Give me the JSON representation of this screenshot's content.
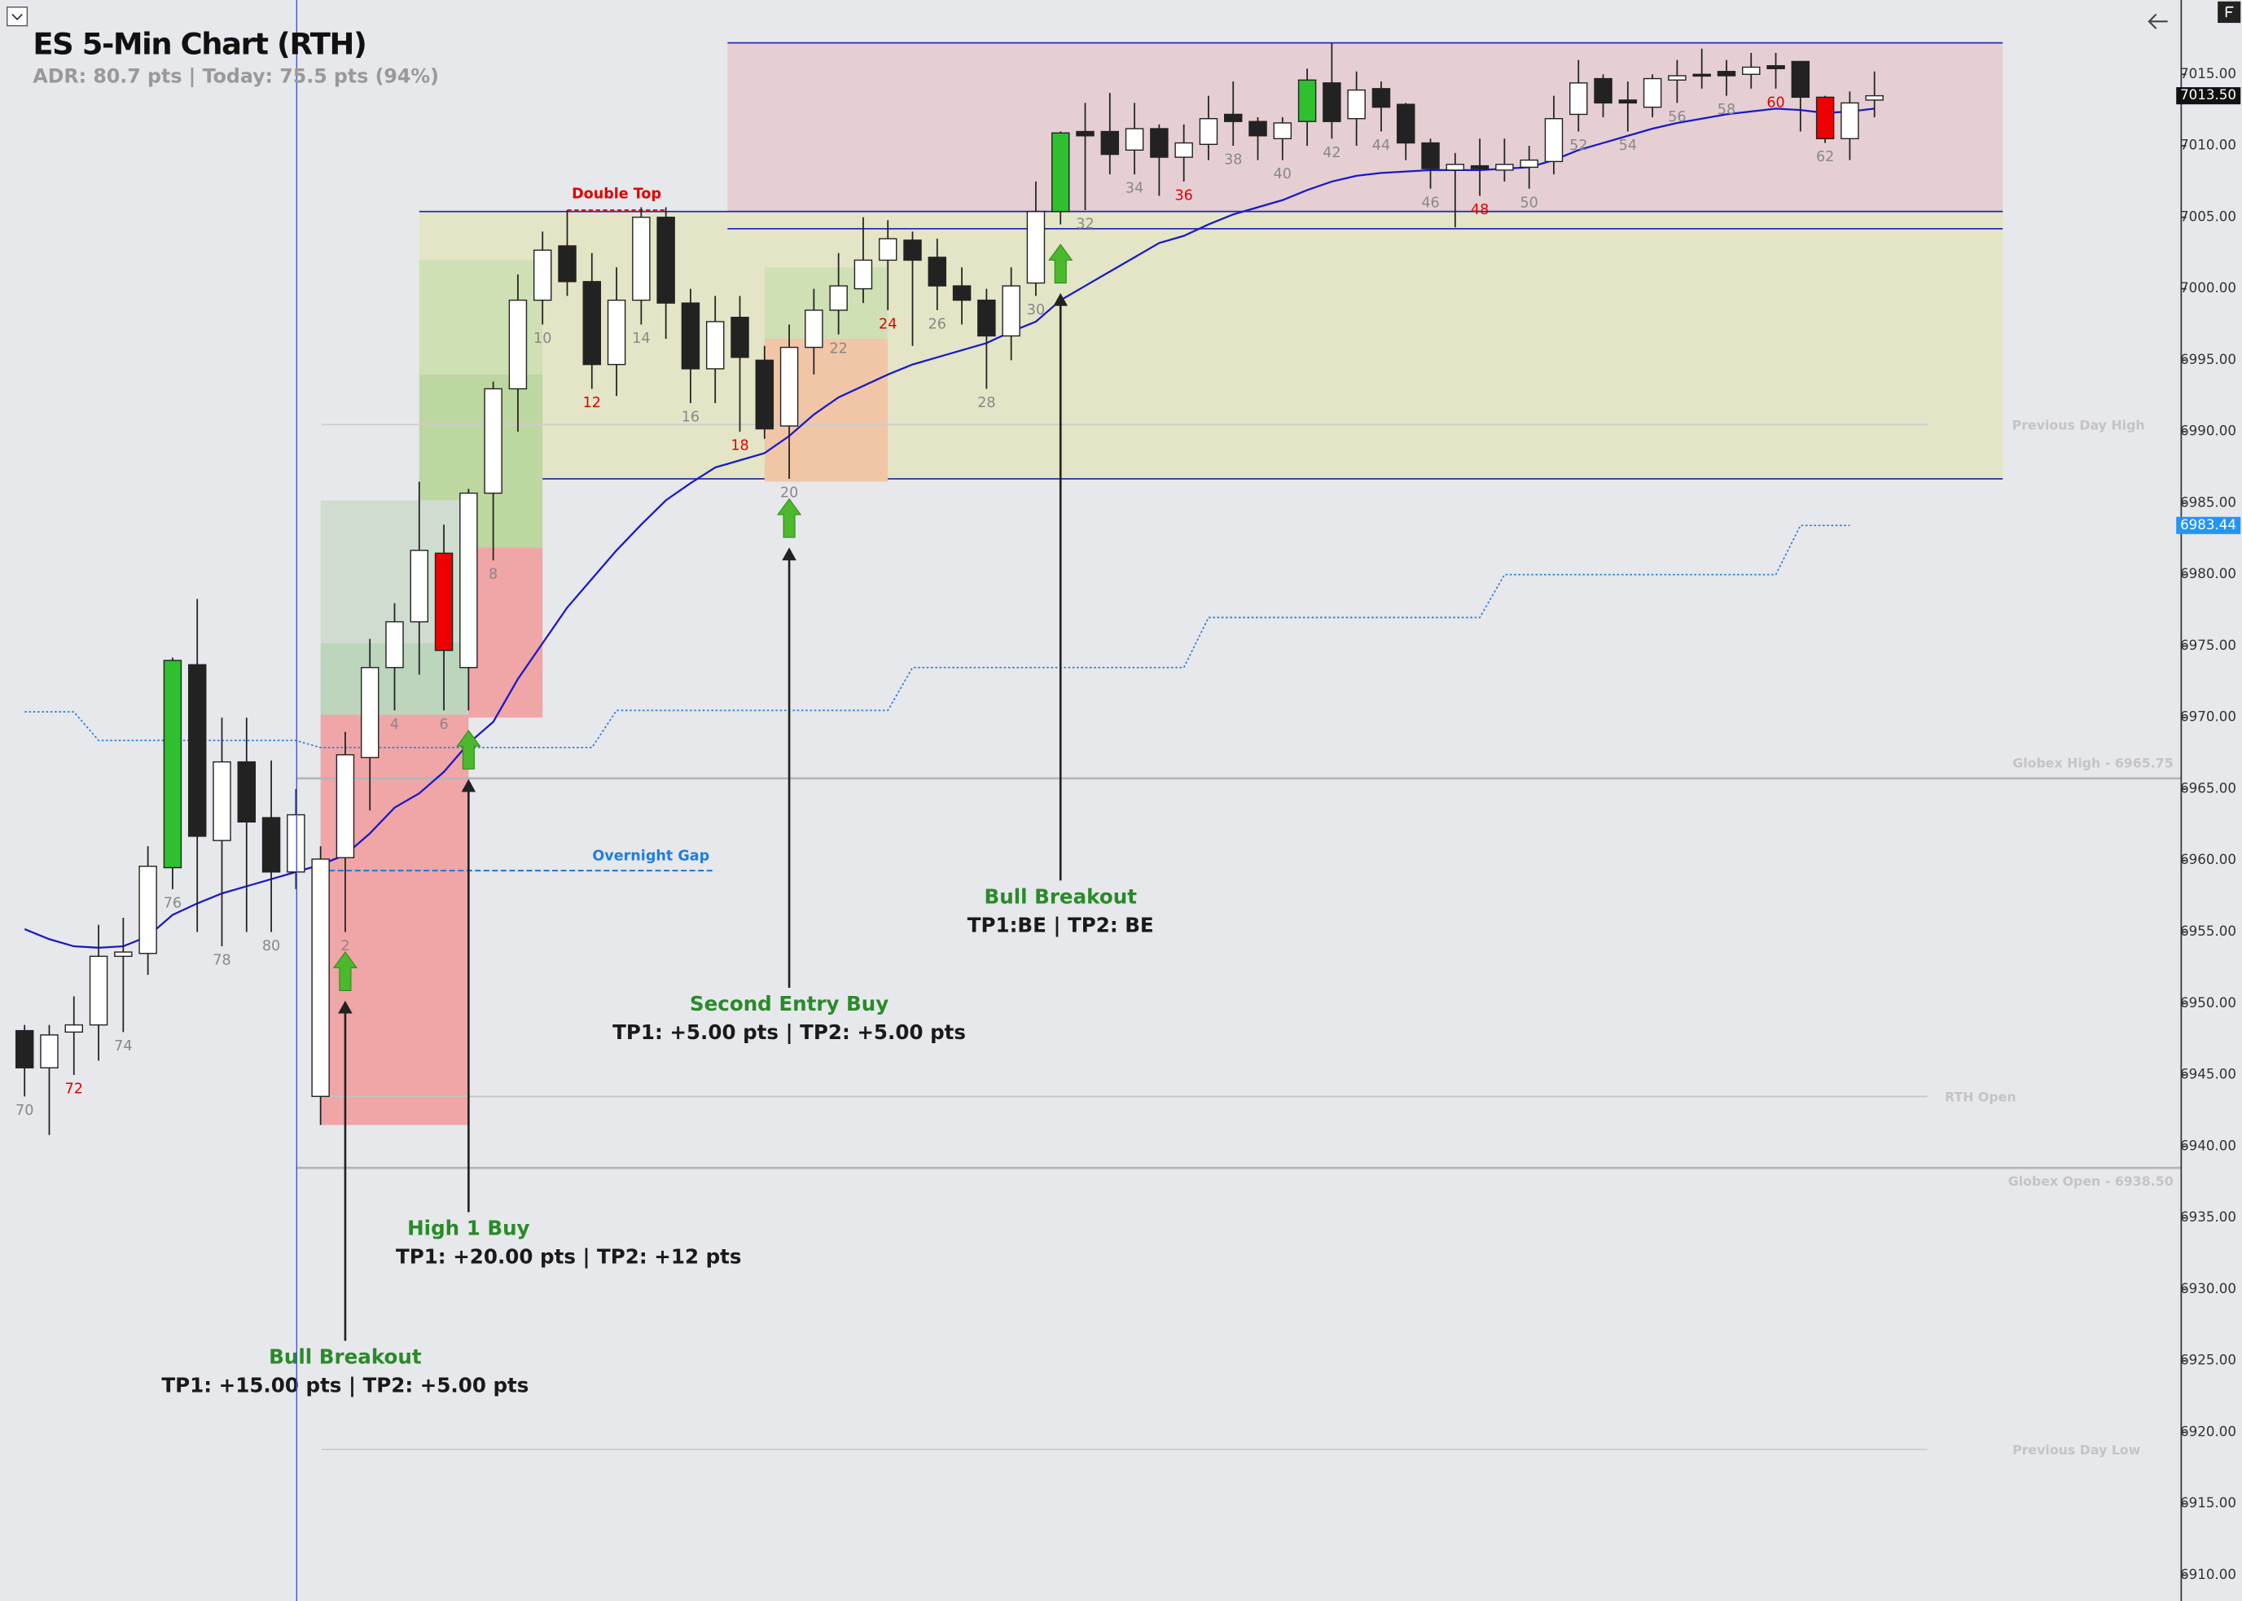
{
  "chart_data": {
    "type": "candlestick",
    "title": "ES 5-Min Chart (RTH)",
    "subtitle": "ADR: 80.7 pts | Today: 75.5 pts (94%)",
    "categories": [
      "70",
      null,
      "72",
      null,
      "74",
      null,
      "76",
      null,
      "78",
      null,
      "80",
      null,
      null,
      "2",
      null,
      "4",
      null,
      "6",
      null,
      "8",
      null,
      "10",
      null,
      "12",
      null,
      "14",
      null,
      "16",
      null,
      "18",
      null,
      "20",
      null,
      "22",
      null,
      "24",
      null,
      "26",
      null,
      "28",
      null,
      "30",
      null,
      "32",
      null,
      "34",
      null,
      "36",
      null,
      "38",
      null,
      "40",
      null,
      "42",
      null,
      "44",
      null,
      "46",
      null,
      "48",
      null,
      "50",
      null,
      "52",
      null,
      "54",
      null,
      "56",
      null,
      "58",
      null,
      "60",
      null,
      "62",
      null,
      null
    ],
    "label_color": "#888888",
    "label_colors": [
      null,
      null,
      "#e00000",
      null,
      null,
      null,
      null,
      null,
      null,
      null,
      null,
      null,
      null,
      null,
      null,
      null,
      null,
      null,
      null,
      null,
      null,
      null,
      null,
      "#e00000",
      null,
      null,
      null,
      null,
      null,
      "#e00000",
      null,
      null,
      null,
      null,
      null,
      "#e00000",
      null,
      null,
      null,
      null,
      null,
      null,
      null,
      null,
      null,
      null,
      null,
      "#e00000",
      null,
      null,
      null,
      null,
      null,
      null,
      null,
      null,
      null,
      null,
      null,
      "#e00000",
      null,
      null,
      null,
      null,
      null,
      null,
      null,
      null,
      null,
      null,
      null,
      "#e00000",
      null,
      null,
      null,
      null
    ],
    "candle_colors": [
      null,
      null,
      null,
      null,
      null,
      null,
      "#2ec02e",
      null,
      null,
      null,
      null,
      null,
      null,
      null,
      null,
      null,
      null,
      "#ee0000",
      null,
      null,
      null,
      null,
      null,
      null,
      null,
      null,
      null,
      null,
      null,
      null,
      null,
      null,
      null,
      null,
      null,
      null,
      null,
      null,
      null,
      null,
      null,
      null,
      "#2ec02e",
      null,
      null,
      null,
      null,
      null,
      null,
      null,
      null,
      null,
      "#2ec02e",
      null,
      null,
      null,
      null,
      null,
      null,
      null,
      null,
      null,
      null,
      null,
      null,
      null,
      null,
      null,
      null,
      null,
      null,
      null,
      null,
      "#ee0000",
      null,
      null
    ],
    "open": [
      6948.1,
      6945.5,
      6948,
      6948.5,
      6953.3,
      6953.5,
      6959.5,
      6973.7,
      6961.4,
      6966.9,
      6963,
      6959.2,
      6943.5,
      6960.2,
      6967.2,
      6973.5,
      6976.7,
      6981.5,
      6973.5,
      6985.7,
      6993,
      6999.2,
      7003,
      7000.5,
      6994.7,
      6999.2,
      7005,
      6999,
      6994.4,
      6998,
      6995,
      6990.4,
      6995.9,
      6998.5,
      7000,
      7002,
      7003.4,
      7002.2,
      7000.2,
      6999.2,
      6996.7,
      7000.4,
      7005.4,
      7011,
      7011,
      7009.7,
      7011.2,
      7009.2,
      7010.1,
      7012.2,
      7011.7,
      7010.5,
      7011.7,
      7014.4,
      7011.9,
      7014,
      7012.9,
      7010.2,
      7008.3,
      7008.6,
      7008.3,
      7008.5,
      7008.9,
      7012.2,
      7014.7,
      7013.2,
      7012.7,
      7014.6,
      7015,
      7015.2,
      7015,
      7015.6,
      7015.9,
      7013.4,
      7010.5,
      7013.2
    ],
    "high": [
      6948.5,
      6948.5,
      6950.5,
      6955.5,
      6956,
      6961,
      6974.2,
      6978.3,
      6970,
      6970,
      6967,
      6965,
      6961,
      6969,
      6975.5,
      6978,
      6986.5,
      6983.5,
      6986,
      6993.5,
      7001,
      7004,
      7005.5,
      7002.5,
      7001.5,
      7005.7,
      7005.7,
      7000,
      6999.5,
      6999.5,
      6996,
      6997.5,
      7000,
      7002.5,
      7005,
      7004.8,
      7004,
      7003.5,
      7001.5,
      7000,
      7001.5,
      7007.5,
      7011,
      7013,
      7013.7,
      7013,
      7011.5,
      7011.5,
      7013.5,
      7014.5,
      7012,
      7012,
      7015.4,
      7017.2,
      7015.2,
      7014.5,
      7013,
      7010.5,
      7009.5,
      7010.5,
      7010.5,
      7010,
      7013.5,
      7016,
      7015,
      7014.5,
      7015,
      7016,
      7016.8,
      7016,
      7016.5,
      7016.5,
      7015.9,
      7013.5,
      7013.8,
      7015.2
    ],
    "low": [
      6943.5,
      6940.8,
      6945,
      6946,
      6948,
      6952,
      6958,
      6955,
      6954,
      6955,
      6955,
      6958,
      6941.5,
      6955,
      6963.5,
      6970.5,
      6973,
      6970.5,
      6970.5,
      6981,
      6990,
      6997.5,
      6999.5,
      6993,
      6992.5,
      6997.5,
      6996.5,
      6992,
      6992,
      6990,
      6989.5,
      6986.7,
      6994,
      6996.8,
      6999,
      6998.5,
      6996,
      6998.5,
      6997.5,
      6993,
      6995,
      6999.5,
      7004.5,
      7005.5,
      7008,
      7008,
      7006.5,
      7007.5,
      7009,
      7010,
      7009,
      7009,
      7010,
      7010.5,
      7010,
      7011,
      7009,
      7007,
      7004.3,
      7006.5,
      7007.5,
      7007,
      7008,
      7011,
      7012,
      7011,
      7012,
      7013,
      7014,
      7013.5,
      7014,
      7014,
      7011,
      7010.2,
      7009,
      7012
    ],
    "close": [
      6945.5,
      6947.8,
      6948.5,
      6953.3,
      6953.6,
      6959.6,
      6974,
      6961.7,
      6966.9,
      6962.7,
      6959.2,
      6963.2,
      6960.1,
      6967.4,
      6973.5,
      6976.7,
      6981.7,
      6974.7,
      6985.7,
      6993,
      6999.2,
      7002.7,
      7000.5,
      6994.7,
      6999.2,
      7005,
      6999,
      6994.4,
      6997.7,
      6995.2,
      6990.2,
      6995.9,
      6998.5,
      7000.2,
      7002,
      7003.5,
      7002,
      7000.2,
      6999.2,
      6996.7,
      7000.2,
      7005.4,
      7010.9,
      7010.7,
      7009.4,
      7011.2,
      7009.2,
      7010.2,
      7011.9,
      7011.7,
      7010.7,
      7011.6,
      7014.6,
      7011.7,
      7013.9,
      7012.7,
      7010.2,
      7008.4,
      7008.7,
      7008.4,
      7008.7,
      7009,
      7011.9,
      7014.4,
      7013,
      7013,
      7014.7,
      7014.9,
      7014.9,
      7014.9,
      7015.5,
      7015.4,
      7013.4,
      7010.5,
      7013,
      7013.5
    ],
    "ema": {
      "color": "#1a1ac8",
      "values": [
        6955.2,
        6954.5,
        6954,
        6953.9,
        6954,
        6954.7,
        6956.2,
        6957,
        6957.7,
        6958.2,
        6958.7,
        6959.2,
        6959.7,
        6960.4,
        6961.9,
        6963.7,
        6964.7,
        6966.2,
        6968.2,
        6969.7,
        6972.7,
        6975.2,
        6977.7,
        6979.7,
        6981.7,
        6983.5,
        6985.2,
        6986.4,
        6987.5,
        6988,
        6988.5,
        6989.7,
        6991.2,
        6992.4,
        6993.2,
        6994,
        6994.7,
        6995.2,
        6995.7,
        6996.2,
        6997,
        6997.7,
        6999.2,
        7000.2,
        7001.2,
        7002.2,
        7003.2,
        7003.7,
        7004.5,
        7005.2,
        7005.7,
        7006.2,
        7006.9,
        7007.5,
        7007.9,
        7008.1,
        7008.2,
        7008.3,
        7008.3,
        7008.3,
        7008.4,
        7008.5,
        7009,
        7009.7,
        7010.2,
        7010.7,
        7011.2,
        7011.6,
        7011.9,
        7012.2,
        7012.4,
        7012.6,
        7012.5,
        7012.3,
        7012.4,
        7012.6
      ]
    },
    "stepline": {
      "color": "#2f7fe0",
      "values": [
        6970.4,
        6970.4,
        6970.4,
        6968.4,
        6968.4,
        6968.4,
        6968.4,
        6968.4,
        6968.4,
        6968.4,
        6968.4,
        6968.4,
        6967.9,
        6967.9,
        6967.9,
        6967.9,
        6967.9,
        6967.9,
        6967.9,
        6967.9,
        6967.9,
        6967.9,
        6967.9,
        6967.9,
        6970.5,
        6970.5,
        6970.5,
        6970.5,
        6970.5,
        6970.5,
        6970.5,
        6970.5,
        6970.5,
        6970.5,
        6970.5,
        6970.5,
        6973.5,
        6973.5,
        6973.5,
        6973.5,
        6973.5,
        6973.5,
        6973.5,
        6973.5,
        6973.5,
        6973.5,
        6973.5,
        6973.5,
        6977,
        6977,
        6977,
        6977,
        6977,
        6977,
        6977,
        6977,
        6977,
        6977,
        6977,
        6977,
        6980,
        6980,
        6980,
        6980,
        6980,
        6980,
        6980,
        6980,
        6980,
        6980,
        6980,
        6980,
        6983.44,
        6983.44,
        6983.44,
        null
      ]
    },
    "ylim": [
      6908.2,
      7020.2
    ],
    "yticks": [
      {
        "value": 6910,
        "label": "6910.00"
      },
      {
        "value": 6915,
        "label": "6915.00"
      },
      {
        "value": 6920,
        "label": "6920.00"
      },
      {
        "value": 6925,
        "label": "6925.00"
      },
      {
        "value": 6930,
        "label": "6930.00"
      },
      {
        "value": 6935,
        "label": "6935.00"
      },
      {
        "value": 6940,
        "label": "6940.00"
      },
      {
        "value": 6945,
        "label": "6945.00"
      },
      {
        "value": 6950,
        "label": "6950.00"
      },
      {
        "value": 6955,
        "label": "6955.00"
      },
      {
        "value": 6960,
        "label": "6960.00"
      },
      {
        "value": 6965,
        "label": "6965.00"
      },
      {
        "value": 6970,
        "label": "6970.00"
      },
      {
        "value": 6975,
        "label": "6975.00"
      },
      {
        "value": 6980,
        "label": "6980.00"
      },
      {
        "value": 6985,
        "label": "6985.00"
      },
      {
        "value": 6990,
        "label": "6990.00"
      },
      {
        "value": 6995,
        "label": "6995.00"
      },
      {
        "value": 7000,
        "label": "7000.00"
      },
      {
        "value": 7005,
        "label": "7005.00"
      },
      {
        "value": 7010,
        "label": "7010.00"
      },
      {
        "value": 7015,
        "label": "7015.00"
      }
    ],
    "price_tags": [
      {
        "value": 7013.5,
        "label": "7013.50",
        "color": "#111111"
      },
      {
        "value": 6983.44,
        "label": "6983.44",
        "color": "#2196f3"
      }
    ],
    "zones": [
      {
        "from": 28.5,
        "to": 80.2,
        "top": 7017.2,
        "bottom": 7005.4,
        "color": "#e5cfd3",
        "border": "#2b2bb5"
      },
      {
        "from": 16,
        "to": 80.2,
        "top": 7005.4,
        "bottom": 6986.7,
        "color": "#e4e5c6",
        "border": "#2b2bb5"
      },
      {
        "from": 16,
        "to": 21,
        "top": 7002,
        "bottom": 6994,
        "color": "#cfe0b4"
      },
      {
        "from": 16,
        "to": 21,
        "top": 6994,
        "bottom": 6981.9,
        "color": "#bdd7a0"
      },
      {
        "from": 16,
        "to": 21,
        "top": 6981.9,
        "bottom": 6970,
        "color": "#f0a5a7"
      },
      {
        "from": 12,
        "to": 18,
        "top": 6985.2,
        "bottom": 6975.2,
        "color": "#cfdccf"
      },
      {
        "from": 12,
        "to": 18,
        "top": 6975.2,
        "bottom": 6970.2,
        "color": "#bcd5bc"
      },
      {
        "from": 12,
        "to": 18,
        "top": 6970.2,
        "bottom": 6941.5,
        "color": "#f0a5a7"
      },
      {
        "from": 30,
        "to": 35,
        "top": 7001.5,
        "bottom": 6996.5,
        "color": "#d0e0b5"
      },
      {
        "from": 30,
        "to": 35,
        "top": 6996.5,
        "bottom": 6986.5,
        "color": "#f1c6a6"
      }
    ],
    "range_lines": [
      {
        "value": 7004.2,
        "from": 28.5,
        "to": 80.2,
        "color": "#2b2bb5"
      }
    ],
    "levels": [
      {
        "value": 6990.5,
        "label": "Previous Day High",
        "color": "#cccccc"
      },
      {
        "value": 6965.75,
        "label": "Globex High - 6965.75",
        "color": "#b5b5b5"
      },
      {
        "value": 6943.5,
        "label": "RTH Open",
        "color": "#c4c4c4"
      },
      {
        "value": 6938.5,
        "label": "Globex Open - 6938.50",
        "color": "#b5b5b5"
      },
      {
        "value": 6918.8,
        "label": "Previous Day Low",
        "color": "#cccccc"
      }
    ],
    "overnight_gap": {
      "value": 6959.3,
      "label": "Overnight Gap",
      "from": 12,
      "to": 28,
      "color": "#1e7ee0"
    },
    "double_top": {
      "value": 7005.4,
      "label": "Double Top",
      "from": 22,
      "to": 26,
      "color": "#e00000"
    },
    "signals": [
      {
        "index": 13,
        "label": "Bull Breakout",
        "detail": "TP1: +15.00 pts | TP2: +5.00 pts"
      },
      {
        "index": 18,
        "label": "High 1 Buy",
        "detail": "TP1: +20.00 pts | TP2: +12 pts"
      },
      {
        "index": 31,
        "label": "Second Entry Buy",
        "detail": "TP1: +5.00 pts | TP2: +5.00 pts"
      },
      {
        "index": 42,
        "label": "Bull Breakout",
        "detail": "TP1:BE | TP2: BE"
      }
    ]
  }
}
